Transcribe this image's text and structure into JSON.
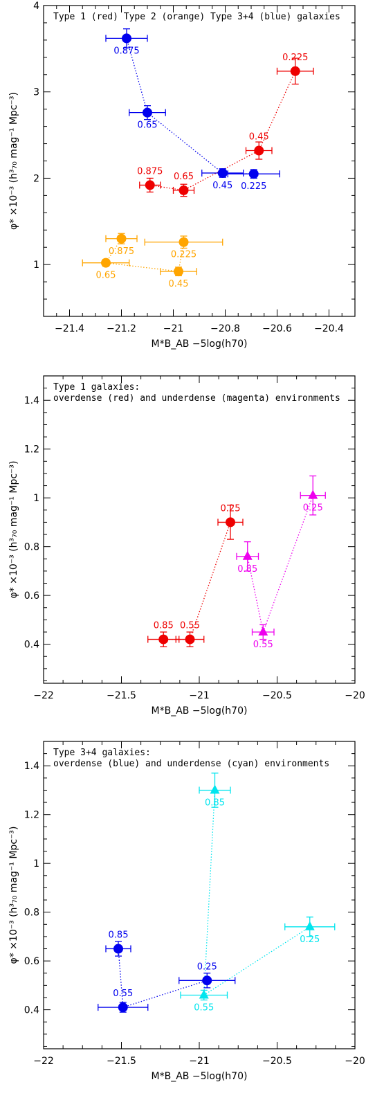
{
  "chart_data": [
    {
      "type": "scatter",
      "title": "Type 1 (red) Type 2 (orange) Type 3+4 (blue) galaxies",
      "xlabel": "M*B_AB −5log(h70)",
      "ylabel": "φ* ×10⁻³ (h³₇₀ mag⁻¹ Mpc⁻³)",
      "xlim": [
        -21.5,
        -20.3
      ],
      "ylim": [
        0.4,
        4.0
      ],
      "xticks": [
        -21.4,
        -21.2,
        -21.0,
        -20.8,
        -20.6,
        -20.4
      ],
      "xticklabels": [
        "−21.4",
        "−21.2",
        "−21",
        "−20.8",
        "−20.6",
        "−20.4"
      ],
      "yticks": [
        1,
        2,
        3,
        4
      ],
      "yticklabels": [
        "1",
        "2",
        "3",
        "4"
      ],
      "series": [
        {
          "color": "#0000ee",
          "marker": "circle",
          "points": [
            {
              "x": -21.18,
              "y": 3.62,
              "xerr": 0.08,
              "yerr": 0.11,
              "label": "0.875",
              "lpos": "below"
            },
            {
              "x": -21.1,
              "y": 2.76,
              "xerr": 0.07,
              "yerr": 0.08,
              "label": "0.65",
              "lpos": "below"
            },
            {
              "x": -20.81,
              "y": 2.06,
              "xerr": 0.08,
              "yerr": 0.05,
              "label": "0.45",
              "lpos": "below"
            },
            {
              "x": -20.69,
              "y": 2.05,
              "xerr": 0.1,
              "yerr": 0.05,
              "label": "0.225",
              "lpos": "below"
            }
          ]
        },
        {
          "color": "#ee0000",
          "marker": "circle",
          "points": [
            {
              "x": -21.09,
              "y": 1.92,
              "xerr": 0.04,
              "yerr": 0.08,
              "label": "0.875",
              "lpos": "above"
            },
            {
              "x": -20.96,
              "y": 1.86,
              "xerr": 0.04,
              "yerr": 0.07,
              "label": "0.65",
              "lpos": "above"
            },
            {
              "x": -20.67,
              "y": 2.32,
              "xerr": 0.05,
              "yerr": 0.1,
              "label": "0.45",
              "lpos": "above"
            },
            {
              "x": -20.53,
              "y": 3.24,
              "xerr": 0.07,
              "yerr": 0.15,
              "label": "0.225",
              "lpos": "above"
            }
          ]
        },
        {
          "color": "#ffa500",
          "marker": "circle",
          "points": [
            {
              "x": -21.26,
              "y": 1.02,
              "xerr": 0.09,
              "yerr": 0.04,
              "label": "0.65",
              "lpos": "below"
            },
            {
              "x": -21.2,
              "y": 1.3,
              "xerr": 0.06,
              "yerr": 0.06,
              "label": "0.875",
              "lpos": "below"
            },
            {
              "x": -20.98,
              "y": 0.92,
              "xerr": 0.07,
              "yerr": 0.05,
              "label": "0.45",
              "lpos": "below"
            },
            {
              "x": -20.96,
              "y": 1.26,
              "xerr": 0.15,
              "yerr": 0.07,
              "label": "0.225",
              "lpos": "below"
            }
          ]
        }
      ],
      "connectors": [
        {
          "color": "#0000ee",
          "order": [
            0,
            1,
            2,
            3
          ]
        },
        {
          "color": "#ee0000",
          "order": [
            0,
            1,
            2,
            3
          ]
        },
        {
          "color": "#ffa500",
          "order": [
            1,
            0,
            2,
            3
          ]
        }
      ]
    },
    {
      "type": "scatter",
      "title": "Type 1 galaxies:",
      "subtitle": "overdense (red) and underdense (magenta) environments",
      "xlabel": "M*B_AB −5log(h70)",
      "ylabel": "φ* ×10⁻³ (h³₇₀ mag⁻¹ Mpc⁻³)",
      "xlim": [
        -22,
        -20
      ],
      "ylim": [
        0.24,
        1.5
      ],
      "xticks": [
        -22,
        -21.5,
        -21,
        -20.5,
        -20
      ],
      "xticklabels": [
        "−22",
        "−21.5",
        "−21",
        "−20.5",
        "−20"
      ],
      "yticks": [
        0.4,
        0.6,
        0.8,
        1.0,
        1.2,
        1.4
      ],
      "yticklabels": [
        "0.4",
        "0.6",
        "0.8",
        "1",
        "1.2",
        "1.4"
      ],
      "series": [
        {
          "color": "#ee0000",
          "marker": "circle",
          "points": [
            {
              "x": -21.23,
              "y": 0.42,
              "xerr": 0.1,
              "yerr": 0.03,
              "label": "0.85",
              "lpos": "above"
            },
            {
              "x": -21.06,
              "y": 0.42,
              "xerr": 0.09,
              "yerr": 0.03,
              "label": "0.55",
              "lpos": "above"
            },
            {
              "x": -20.8,
              "y": 0.9,
              "xerr": 0.08,
              "yerr": 0.07,
              "label": "0.25",
              "lpos": "above"
            }
          ]
        },
        {
          "color": "#ee00ee",
          "marker": "triangle",
          "points": [
            {
              "x": -20.69,
              "y": 0.76,
              "xerr": 0.07,
              "yerr": 0.06,
              "label": "0.85",
              "lpos": "below"
            },
            {
              "x": -20.59,
              "y": 0.45,
              "xerr": 0.07,
              "yerr": 0.03,
              "label": "0.55",
              "lpos": "below"
            },
            {
              "x": -20.27,
              "y": 1.01,
              "xerr": 0.08,
              "yerr": 0.08,
              "label": "0.25",
              "lpos": "below"
            }
          ]
        }
      ],
      "connectors": [
        {
          "color": "#ee0000",
          "order": [
            0,
            1,
            2
          ]
        },
        {
          "color": "#ee00ee",
          "order": [
            0,
            1,
            2
          ]
        }
      ]
    },
    {
      "type": "scatter",
      "title": "Type 3+4 galaxies:",
      "subtitle": "overdense (blue) and underdense (cyan) environments",
      "xlabel": "M*B_AB −5log(h70)",
      "ylabel": "φ* ×10⁻³ (h³₇₀ mag⁻¹ Mpc⁻³)",
      "xlim": [
        -22,
        -20
      ],
      "ylim": [
        0.24,
        1.5
      ],
      "xticks": [
        -22,
        -21.5,
        -21,
        -20.5,
        -20
      ],
      "xticklabels": [
        "−22",
        "−21.5",
        "−21",
        "−20.5",
        "−20"
      ],
      "yticks": [
        0.4,
        0.6,
        0.8,
        1.0,
        1.2,
        1.4
      ],
      "yticklabels": [
        "0.4",
        "0.6",
        "0.8",
        "1",
        "1.2",
        "1.4"
      ],
      "series": [
        {
          "color": "#0000ee",
          "marker": "circle",
          "points": [
            {
              "x": -21.52,
              "y": 0.65,
              "xerr": 0.08,
              "yerr": 0.03,
              "label": "0.85",
              "lpos": "above"
            },
            {
              "x": -21.49,
              "y": 0.41,
              "xerr": 0.16,
              "yerr": 0.02,
              "label": "0.55",
              "lpos": "above"
            },
            {
              "x": -20.95,
              "y": 0.52,
              "xerr": 0.18,
              "yerr": 0.03,
              "label": "0.25",
              "lpos": "above"
            }
          ]
        },
        {
          "color": "#00e5ee",
          "marker": "triangle",
          "points": [
            {
              "x": -20.9,
              "y": 1.3,
              "xerr": 0.1,
              "yerr": 0.07,
              "label": "0.85",
              "lpos": "below"
            },
            {
              "x": -20.97,
              "y": 0.46,
              "xerr": 0.15,
              "yerr": 0.02,
              "label": "0.55",
              "lpos": "below"
            },
            {
              "x": -20.29,
              "y": 0.74,
              "xerr": 0.16,
              "yerr": 0.04,
              "label": "0.25",
              "lpos": "below"
            }
          ]
        }
      ],
      "connectors": [
        {
          "color": "#0000ee",
          "order": [
            0,
            1,
            2
          ]
        },
        {
          "color": "#00e5ee",
          "order": [
            0,
            1,
            2
          ]
        }
      ]
    }
  ]
}
